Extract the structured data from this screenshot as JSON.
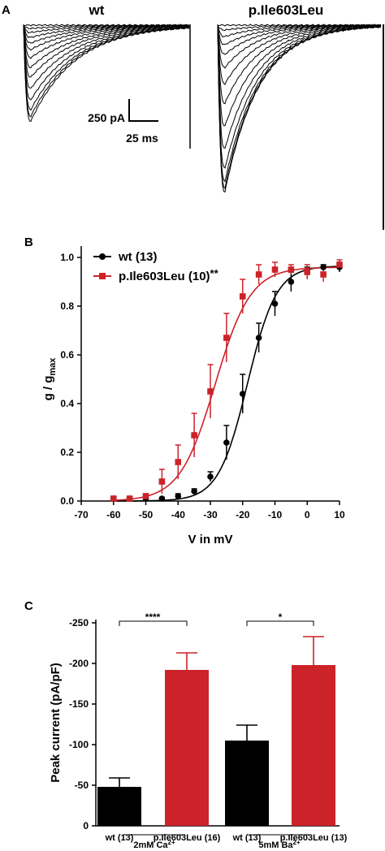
{
  "panels": {
    "a": "A",
    "b": "B",
    "c": "C"
  },
  "panel_a": {
    "wt_label": "wt",
    "mut_label": "p.Ile603Leu",
    "scale_current": "250 pA",
    "scale_time": "25 ms"
  },
  "colors": {
    "wt": "#000000",
    "mutant": "#cc2229"
  },
  "chart_data": [
    {
      "type": "scatter",
      "panel": "B",
      "xlabel": "V in mV",
      "ylabel_main": "g / g",
      "ylabel_sub": "max",
      "xlim": [
        -70,
        10
      ],
      "ylim": [
        0,
        1.0
      ],
      "xticks": [
        -70,
        -60,
        -50,
        -40,
        -30,
        -20,
        -10,
        0,
        10
      ],
      "yticks": [
        0.0,
        0.2,
        0.4,
        0.6,
        0.8,
        1.0
      ],
      "x": [
        -60,
        -55,
        -50,
        -45,
        -40,
        -35,
        -30,
        -25,
        -20,
        -15,
        -10,
        -5,
        0,
        5,
        10
      ],
      "series": [
        {
          "name": "wt (13)",
          "marker": "circle",
          "values": [
            0.01,
            0.01,
            0.01,
            0.01,
            0.02,
            0.04,
            0.1,
            0.24,
            0.44,
            0.67,
            0.81,
            0.9,
            0.94,
            0.96,
            0.96
          ],
          "errors": [
            0.005,
            0.005,
            0.005,
            0.005,
            0.01,
            0.01,
            0.02,
            0.07,
            0.08,
            0.06,
            0.05,
            0.04,
            0.02,
            0.01,
            0.02
          ],
          "fit_v_half": -18.5,
          "fit_slope": 4.5,
          "fit_max": 0.965
        },
        {
          "name": "p.Ile603Leu (10)",
          "annotation": "**",
          "marker": "square",
          "values": [
            0.01,
            0.01,
            0.02,
            0.08,
            0.16,
            0.27,
            0.45,
            0.67,
            0.84,
            0.93,
            0.95,
            0.95,
            0.94,
            0.93,
            0.97
          ],
          "errors": [
            0.005,
            0.005,
            0.01,
            0.05,
            0.07,
            0.09,
            0.11,
            0.1,
            0.07,
            0.04,
            0.03,
            0.02,
            0.03,
            0.03,
            0.02
          ],
          "fit_v_half": -28.5,
          "fit_slope": 5.5,
          "fit_max": 0.96
        }
      ]
    },
    {
      "type": "bar",
      "panel": "C",
      "ylabel": "Peak current (pA/pF)",
      "ylim": [
        0,
        -250
      ],
      "yticks": [
        "0",
        "-50",
        "-100",
        "-150",
        "-200",
        "-250"
      ],
      "categories": [
        "wt (13)",
        "p.Ile603Leu (16)",
        "wt (13)",
        "p.Ile603Leu (13)"
      ],
      "values": [
        -48,
        -192,
        -105,
        -198
      ],
      "errors": [
        11,
        21,
        19,
        35
      ],
      "bar_series": [
        "wt",
        "mutant",
        "wt",
        "mutant"
      ],
      "groups": [
        {
          "label": "2mM Ca",
          "sup": "2+",
          "significance": "****"
        },
        {
          "label": "5mM Ba",
          "sup": "2+",
          "significance": "*"
        }
      ]
    }
  ]
}
